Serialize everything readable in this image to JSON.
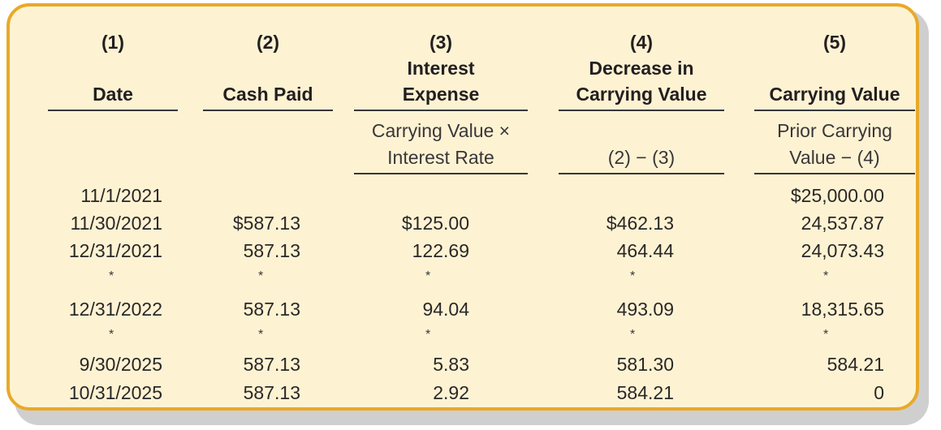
{
  "table": {
    "headers": [
      {
        "num": "(1)",
        "line1": "",
        "line2": "Date",
        "formula1": "",
        "formula2": ""
      },
      {
        "num": "(2)",
        "line1": "",
        "line2": "Cash Paid",
        "formula1": "",
        "formula2": ""
      },
      {
        "num": "(3)",
        "line1": "Interest",
        "line2": "Expense",
        "formula1": "Carrying Value ×",
        "formula2": "Interest Rate"
      },
      {
        "num": "(4)",
        "line1": "Decrease in",
        "line2": "Carrying Value",
        "formula1": "",
        "formula2": "(2) − (3)"
      },
      {
        "num": "(5)",
        "line1": "",
        "line2": "Carrying Value",
        "formula1": "Prior Carrying",
        "formula2": "Value − (4)"
      }
    ],
    "rows": [
      {
        "date": "11/1/2021",
        "cash": "",
        "interest": "",
        "decrease": "",
        "carrying": "$25,000.00"
      },
      {
        "date": "11/30/2021",
        "cash": "$587.13",
        "interest": "$125.00",
        "decrease": "$462.13",
        "carrying": "24,537.87"
      },
      {
        "date": "12/31/2021",
        "cash": "587.13",
        "interest": "122.69",
        "decrease": "464.44",
        "carrying": "24,073.43"
      },
      {
        "date": "*",
        "cash": "*",
        "interest": "*",
        "decrease": "*",
        "carrying": "*"
      },
      {
        "date": "12/31/2022",
        "cash": "587.13",
        "interest": "94.04",
        "decrease": "493.09",
        "carrying": "18,315.65"
      },
      {
        "date": "*",
        "cash": "*",
        "interest": "*",
        "decrease": "*",
        "carrying": "*"
      },
      {
        "date": "9/30/2025",
        "cash": "587.13",
        "interest": "5.83",
        "decrease": "581.30",
        "carrying": "584.21"
      },
      {
        "date": "10/31/2025",
        "cash": "587.13",
        "interest": "2.92",
        "decrease": "584.21",
        "carrying": "0"
      }
    ]
  }
}
